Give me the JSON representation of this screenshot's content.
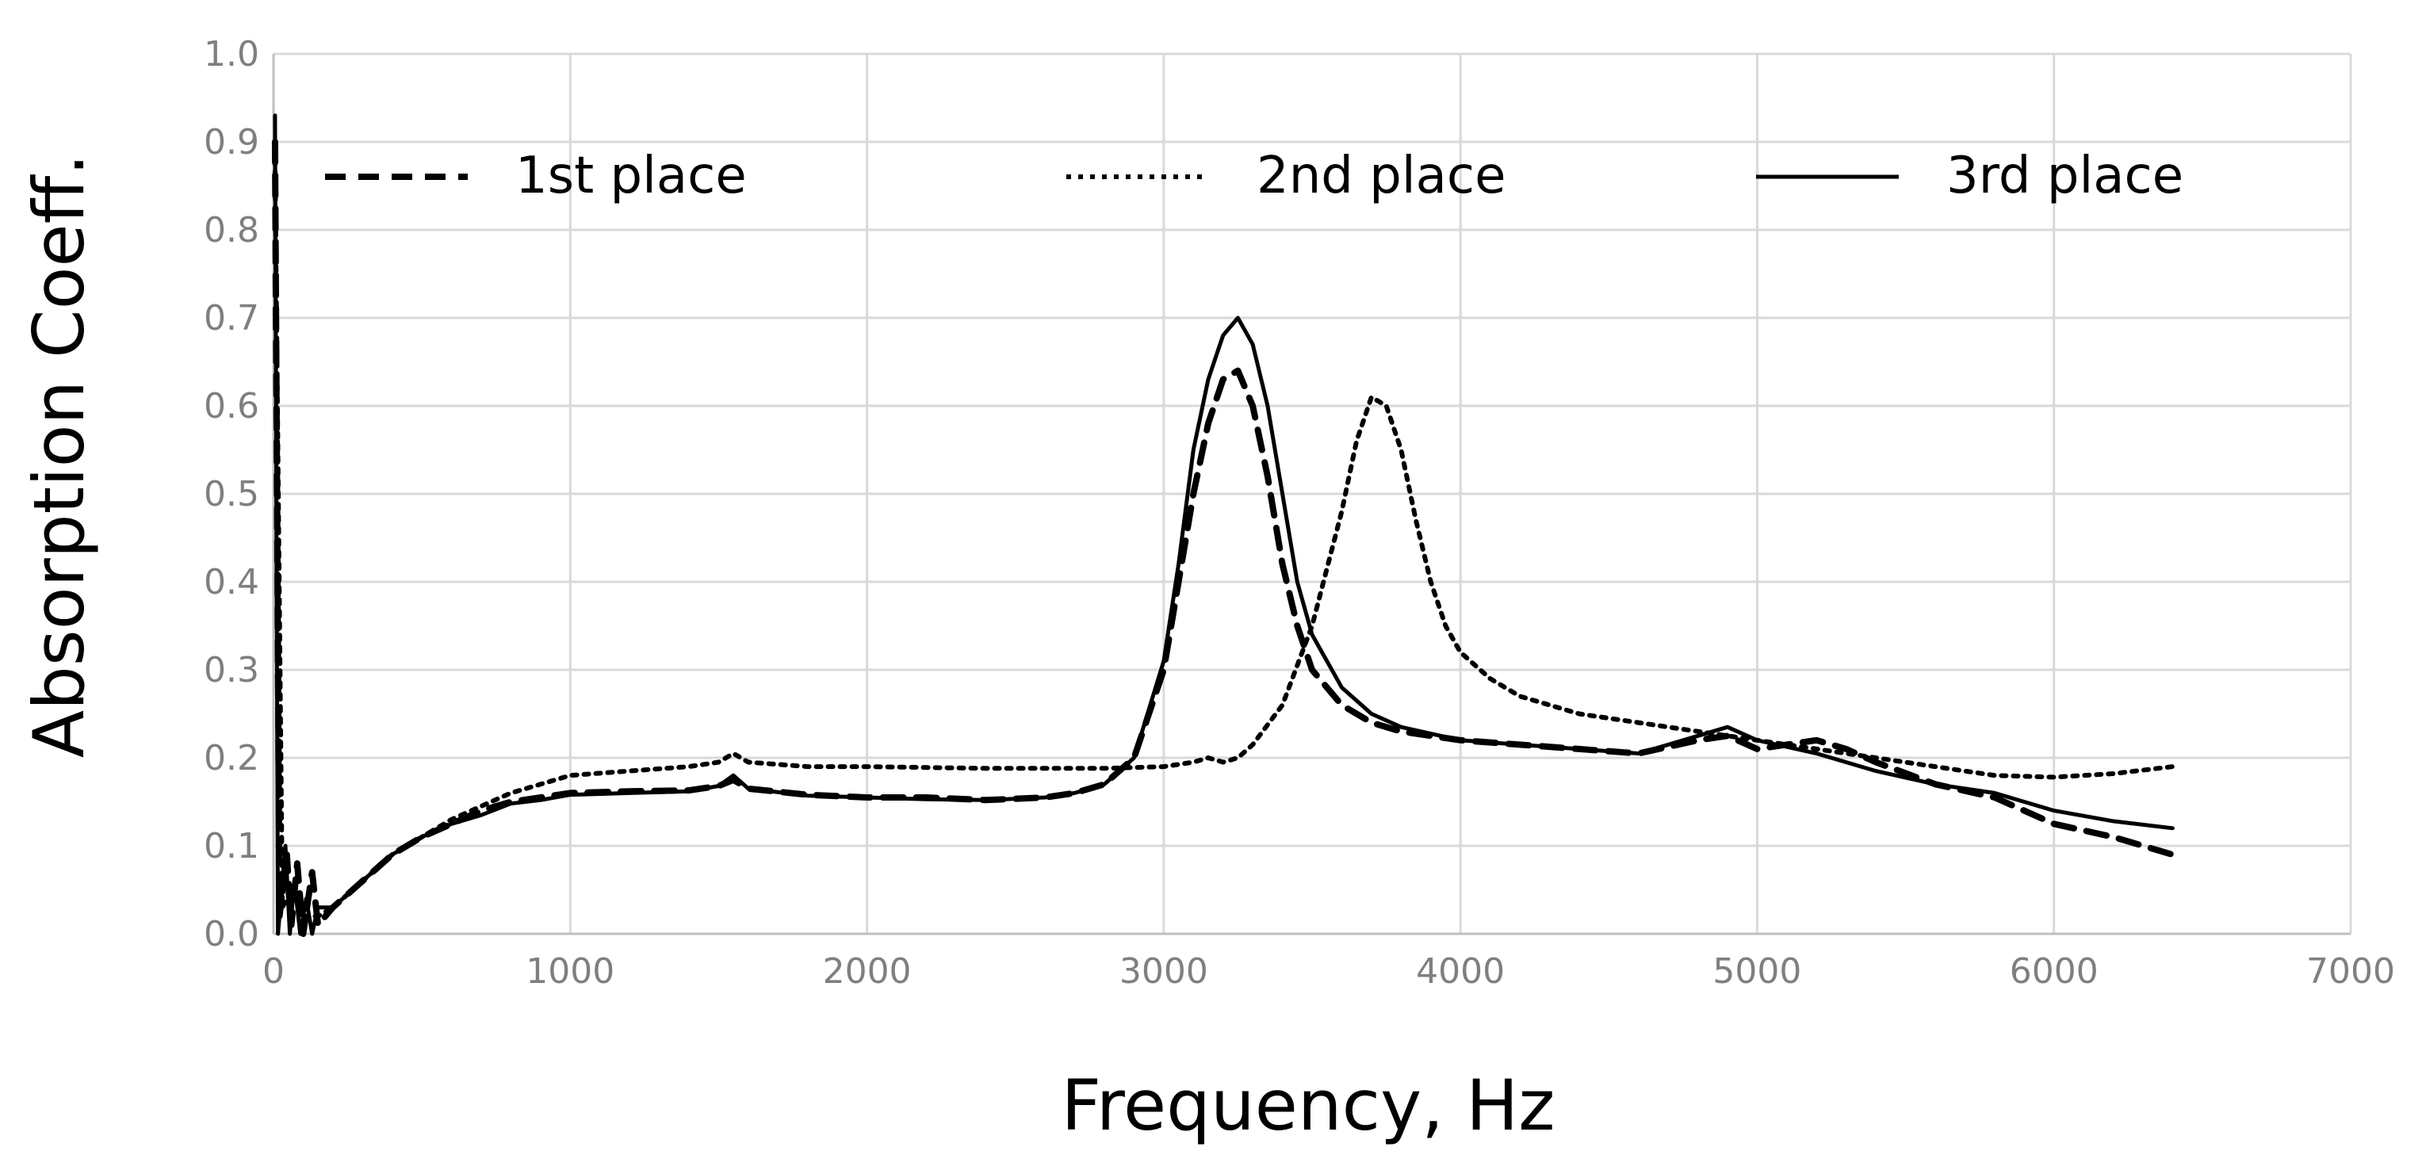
{
  "chart_data": {
    "type": "line",
    "title": "",
    "xlabel": "Frequency, Hz",
    "ylabel": "Absorption Coeff.",
    "xlim": [
      0,
      7000
    ],
    "ylim": [
      0,
      1.0
    ],
    "x_ticks": [
      0,
      1000,
      2000,
      3000,
      4000,
      5000,
      6000,
      7000
    ],
    "y_ticks": [
      0.0,
      0.1,
      0.2,
      0.3,
      0.4,
      0.5,
      0.6,
      0.7,
      0.8,
      0.9,
      1.0
    ],
    "grid": true,
    "legend_position": "top",
    "series": [
      {
        "name": "1st place",
        "line_style": "dashed",
        "points": [
          [
            5,
            0.9
          ],
          [
            20,
            0.02
          ],
          [
            45,
            0.09
          ],
          [
            60,
            0.01
          ],
          [
            80,
            0.08
          ],
          [
            100,
            0.0
          ],
          [
            130,
            0.07
          ],
          [
            150,
            0.01
          ],
          [
            200,
            0.03
          ],
          [
            300,
            0.06
          ],
          [
            400,
            0.09
          ],
          [
            500,
            0.11
          ],
          [
            600,
            0.125
          ],
          [
            700,
            0.14
          ],
          [
            800,
            0.15
          ],
          [
            900,
            0.155
          ],
          [
            1000,
            0.16
          ],
          [
            1200,
            0.162
          ],
          [
            1400,
            0.163
          ],
          [
            1500,
            0.168
          ],
          [
            1550,
            0.175
          ],
          [
            1600,
            0.165
          ],
          [
            1800,
            0.158
          ],
          [
            2000,
            0.155
          ],
          [
            2200,
            0.155
          ],
          [
            2400,
            0.152
          ],
          [
            2600,
            0.155
          ],
          [
            2700,
            0.16
          ],
          [
            2800,
            0.17
          ],
          [
            2900,
            0.2
          ],
          [
            3000,
            0.3
          ],
          [
            3050,
            0.4
          ],
          [
            3100,
            0.5
          ],
          [
            3150,
            0.58
          ],
          [
            3200,
            0.63
          ],
          [
            3250,
            0.64
          ],
          [
            3300,
            0.6
          ],
          [
            3350,
            0.52
          ],
          [
            3400,
            0.42
          ],
          [
            3450,
            0.35
          ],
          [
            3500,
            0.3
          ],
          [
            3600,
            0.26
          ],
          [
            3700,
            0.24
          ],
          [
            3800,
            0.23
          ],
          [
            4000,
            0.22
          ],
          [
            4200,
            0.215
          ],
          [
            4400,
            0.21
          ],
          [
            4600,
            0.205
          ],
          [
            4800,
            0.22
          ],
          [
            4900,
            0.225
          ],
          [
            5000,
            0.21
          ],
          [
            5200,
            0.22
          ],
          [
            5300,
            0.21
          ],
          [
            5400,
            0.195
          ],
          [
            5600,
            0.17
          ],
          [
            5800,
            0.155
          ],
          [
            6000,
            0.125
          ],
          [
            6200,
            0.11
          ],
          [
            6400,
            0.09
          ]
        ]
      },
      {
        "name": "2nd place",
        "line_style": "dotted",
        "points": [
          [
            5,
            0.88
          ],
          [
            30,
            0.03
          ],
          [
            60,
            0.05
          ],
          [
            100,
            0.02
          ],
          [
            150,
            0.02
          ],
          [
            200,
            0.03
          ],
          [
            300,
            0.06
          ],
          [
            400,
            0.09
          ],
          [
            500,
            0.11
          ],
          [
            600,
            0.13
          ],
          [
            700,
            0.145
          ],
          [
            800,
            0.16
          ],
          [
            900,
            0.17
          ],
          [
            1000,
            0.18
          ],
          [
            1200,
            0.185
          ],
          [
            1400,
            0.19
          ],
          [
            1500,
            0.195
          ],
          [
            1550,
            0.205
          ],
          [
            1600,
            0.195
          ],
          [
            1800,
            0.19
          ],
          [
            2000,
            0.19
          ],
          [
            2400,
            0.188
          ],
          [
            2800,
            0.188
          ],
          [
            3000,
            0.19
          ],
          [
            3100,
            0.195
          ],
          [
            3150,
            0.2
          ],
          [
            3200,
            0.195
          ],
          [
            3250,
            0.2
          ],
          [
            3300,
            0.215
          ],
          [
            3400,
            0.26
          ],
          [
            3500,
            0.35
          ],
          [
            3600,
            0.48
          ],
          [
            3650,
            0.56
          ],
          [
            3700,
            0.61
          ],
          [
            3750,
            0.6
          ],
          [
            3800,
            0.55
          ],
          [
            3850,
            0.47
          ],
          [
            3900,
            0.4
          ],
          [
            3950,
            0.35
          ],
          [
            4000,
            0.32
          ],
          [
            4100,
            0.29
          ],
          [
            4200,
            0.27
          ],
          [
            4400,
            0.25
          ],
          [
            4600,
            0.24
          ],
          [
            4800,
            0.23
          ],
          [
            5000,
            0.22
          ],
          [
            5200,
            0.21
          ],
          [
            5400,
            0.2
          ],
          [
            5600,
            0.19
          ],
          [
            5800,
            0.18
          ],
          [
            6000,
            0.178
          ],
          [
            6200,
            0.182
          ],
          [
            6400,
            0.19
          ]
        ]
      },
      {
        "name": "3rd place",
        "line_style": "solid",
        "points": [
          [
            5,
            0.93
          ],
          [
            15,
            0.0
          ],
          [
            40,
            0.1
          ],
          [
            55,
            0.0
          ],
          [
            70,
            0.06
          ],
          [
            90,
            0.0
          ],
          [
            110,
            0.04
          ],
          [
            130,
            0.0
          ],
          [
            150,
            0.03
          ],
          [
            200,
            0.03
          ],
          [
            300,
            0.06
          ],
          [
            400,
            0.09
          ],
          [
            500,
            0.11
          ],
          [
            600,
            0.125
          ],
          [
            700,
            0.135
          ],
          [
            800,
            0.148
          ],
          [
            900,
            0.152
          ],
          [
            1000,
            0.158
          ],
          [
            1200,
            0.16
          ],
          [
            1400,
            0.162
          ],
          [
            1500,
            0.168
          ],
          [
            1550,
            0.18
          ],
          [
            1600,
            0.165
          ],
          [
            1800,
            0.157
          ],
          [
            2000,
            0.155
          ],
          [
            2200,
            0.153
          ],
          [
            2400,
            0.152
          ],
          [
            2600,
            0.155
          ],
          [
            2700,
            0.16
          ],
          [
            2800,
            0.17
          ],
          [
            2900,
            0.2
          ],
          [
            3000,
            0.31
          ],
          [
            3050,
            0.42
          ],
          [
            3100,
            0.55
          ],
          [
            3150,
            0.63
          ],
          [
            3200,
            0.68
          ],
          [
            3250,
            0.7
          ],
          [
            3300,
            0.67
          ],
          [
            3350,
            0.6
          ],
          [
            3400,
            0.5
          ],
          [
            3450,
            0.4
          ],
          [
            3500,
            0.34
          ],
          [
            3600,
            0.28
          ],
          [
            3700,
            0.25
          ],
          [
            3800,
            0.235
          ],
          [
            4000,
            0.22
          ],
          [
            4200,
            0.215
          ],
          [
            4400,
            0.21
          ],
          [
            4600,
            0.205
          ],
          [
            4800,
            0.225
          ],
          [
            4900,
            0.235
          ],
          [
            5000,
            0.22
          ],
          [
            5200,
            0.205
          ],
          [
            5400,
            0.185
          ],
          [
            5600,
            0.17
          ],
          [
            5800,
            0.16
          ],
          [
            6000,
            0.14
          ],
          [
            6200,
            0.128
          ],
          [
            6400,
            0.12
          ]
        ]
      }
    ]
  }
}
